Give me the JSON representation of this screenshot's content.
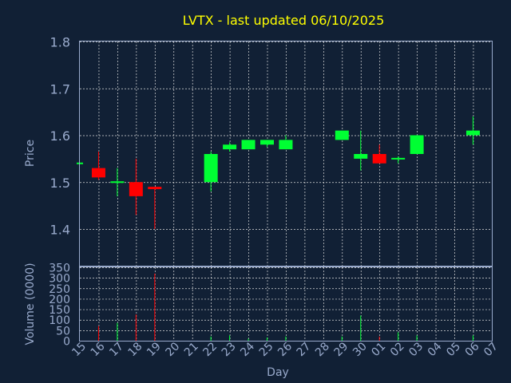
{
  "chart_data": {
    "title": "LVTX - last updated 06/10/2025",
    "type": "candlestick",
    "xlabel": "Day",
    "price": {
      "ylabel": "Price",
      "ylim": [
        1.32,
        1.8
      ],
      "yticks": [
        "1.8",
        "1.7",
        "1.6",
        "1.5",
        "1.4"
      ],
      "ytick_values": [
        1.8,
        1.7,
        1.6,
        1.5,
        1.4
      ]
    },
    "volume": {
      "ylabel": "Volume (0000)",
      "ylim": [
        0,
        350
      ],
      "yticks": [
        "350",
        "300",
        "250",
        "200",
        "150",
        "100",
        "50",
        "0"
      ],
      "ytick_values": [
        350,
        300,
        250,
        200,
        150,
        100,
        50,
        0
      ]
    },
    "x_tick_labels": [
      "15",
      "16",
      "17",
      "18",
      "19",
      "20",
      "21",
      "22",
      "23",
      "24",
      "25",
      "26",
      "27",
      "28",
      "29",
      "30",
      "01",
      "02",
      "03",
      "04",
      "05",
      "06",
      "07"
    ],
    "candles": [
      {
        "day": "15",
        "open": 1.54,
        "high": 1.54,
        "low": 1.54,
        "close": 1.54,
        "volume": 0
      },
      {
        "day": "16",
        "open": 1.53,
        "high": 1.565,
        "low": 1.505,
        "close": 1.51,
        "volume": 70
      },
      {
        "day": "17",
        "open": 1.5,
        "high": 1.53,
        "low": 1.47,
        "close": 1.5,
        "volume": 85
      },
      {
        "day": "18",
        "open": 1.5,
        "high": 1.55,
        "low": 1.43,
        "close": 1.47,
        "volume": 125
      },
      {
        "day": "19",
        "open": 1.49,
        "high": 1.49,
        "low": 1.4,
        "close": 1.485,
        "volume": 320
      },
      {
        "day": "22",
        "open": 1.5,
        "high": 1.565,
        "low": 1.48,
        "close": 1.56,
        "volume": 20
      },
      {
        "day": "23",
        "open": 1.57,
        "high": 1.585,
        "low": 1.565,
        "close": 1.58,
        "volume": 25
      },
      {
        "day": "24",
        "open": 1.57,
        "high": 1.59,
        "low": 1.57,
        "close": 1.59,
        "volume": 10
      },
      {
        "day": "25",
        "open": 1.58,
        "high": 1.59,
        "low": 1.575,
        "close": 1.59,
        "volume": 15
      },
      {
        "day": "26",
        "open": 1.57,
        "high": 1.6,
        "low": 1.57,
        "close": 1.59,
        "volume": 20
      },
      {
        "day": "29",
        "open": 1.59,
        "high": 1.61,
        "low": 1.59,
        "close": 1.61,
        "volume": 20
      },
      {
        "day": "30",
        "open": 1.55,
        "high": 1.61,
        "low": 1.525,
        "close": 1.56,
        "volume": 120
      },
      {
        "day": "01",
        "open": 1.56,
        "high": 1.58,
        "low": 1.54,
        "close": 1.54,
        "volume": 20
      },
      {
        "day": "02",
        "open": 1.55,
        "high": 1.555,
        "low": 1.54,
        "close": 1.55,
        "volume": 40
      },
      {
        "day": "03",
        "open": 1.56,
        "high": 1.6,
        "low": 1.56,
        "close": 1.6,
        "volume": 25
      },
      {
        "day": "06",
        "open": 1.6,
        "high": 1.64,
        "low": 1.58,
        "close": 1.61,
        "volume": 25
      }
    ],
    "colors": {
      "background": "#112035",
      "up": "#00ff33",
      "down": "#ff0000",
      "title": "#ffff00",
      "axis_text": "#99aacc",
      "grid": "#dddddd"
    },
    "grid": true
  }
}
